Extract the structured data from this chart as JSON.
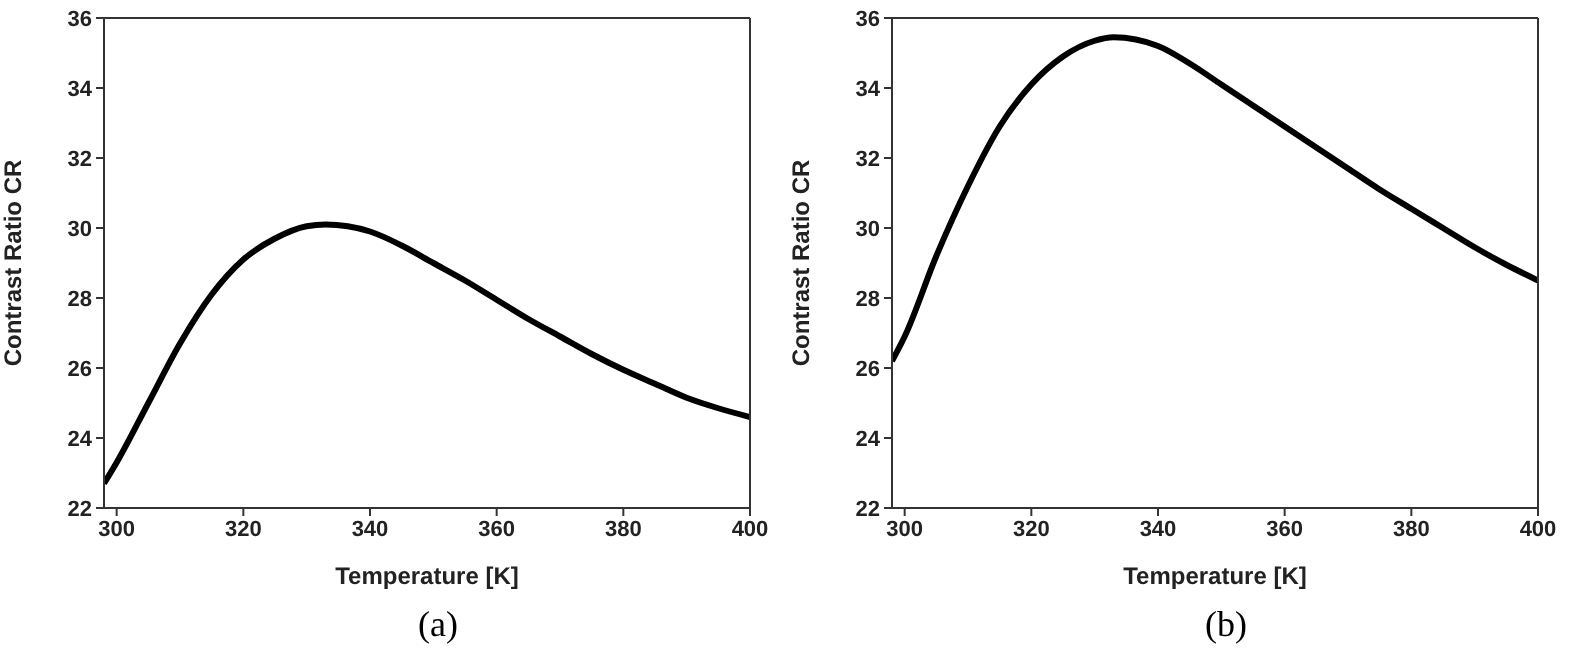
{
  "chart_data": [
    {
      "type": "line",
      "xlabel": "Temperature  [K]",
      "ylabel": "Contrast Ratio  CR",
      "annotations": [
        "(a)"
      ],
      "xlim": [
        298,
        400
      ],
      "xticks": [
        300,
        320,
        340,
        360,
        380,
        400
      ],
      "ylim": [
        22,
        36
      ],
      "yticks": [
        22,
        24,
        26,
        28,
        30,
        32,
        34,
        36
      ],
      "grid": false,
      "legend": false,
      "marker": "none",
      "line_style": "solid",
      "x": [
        298,
        300,
        305,
        310,
        315,
        320,
        325,
        330,
        333,
        340,
        345,
        350,
        355,
        360,
        365,
        370,
        375,
        380,
        385,
        390,
        395,
        400
      ],
      "series": [
        {
          "color": "#000000",
          "values": [
            22.7,
            23.3,
            25.0,
            26.7,
            28.1,
            29.1,
            29.7,
            30.05,
            30.1,
            29.9,
            29.5,
            29.0,
            28.5,
            27.95,
            27.4,
            26.9,
            26.4,
            25.95,
            25.55,
            25.15,
            24.85,
            24.6
          ]
        }
      ]
    },
    {
      "type": "line",
      "xlabel": "Temperature  [K]",
      "ylabel": "Contrast Ratio  CR",
      "annotations": [
        "(b)"
      ],
      "xlim": [
        298,
        400
      ],
      "xticks": [
        300,
        320,
        340,
        360,
        380,
        400
      ],
      "ylim": [
        22,
        36
      ],
      "yticks": [
        22,
        24,
        26,
        28,
        30,
        32,
        34,
        36
      ],
      "grid": false,
      "legend": false,
      "marker": "none",
      "line_style": "solid",
      "x": [
        298,
        300,
        305,
        310,
        315,
        320,
        325,
        330,
        333,
        340,
        345,
        350,
        355,
        360,
        365,
        370,
        375,
        380,
        385,
        390,
        395,
        400
      ],
      "series": [
        {
          "color": "#000000",
          "values": [
            26.2,
            26.9,
            29.2,
            31.2,
            32.9,
            34.1,
            34.9,
            35.35,
            35.45,
            35.2,
            34.7,
            34.1,
            33.5,
            32.9,
            32.3,
            31.7,
            31.1,
            30.55,
            30.0,
            29.45,
            28.95,
            28.5
          ]
        }
      ]
    }
  ]
}
